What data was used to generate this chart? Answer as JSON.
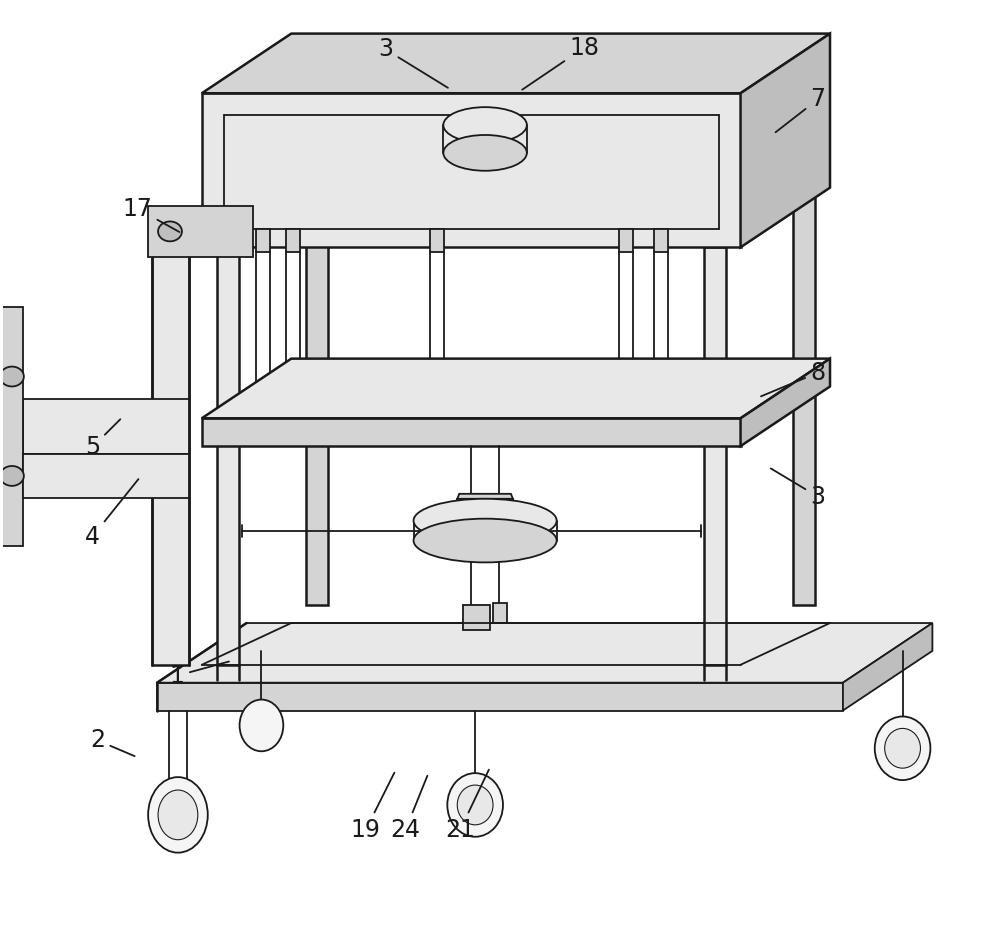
{
  "bg_color": "#ffffff",
  "line_color": "#1a1a1a",
  "lw": 1.3,
  "lw_heavy": 1.8,
  "fig_width": 10.0,
  "fig_height": 9.27,
  "label_fontsize": 17,
  "fills": {
    "light": "#e8e8e8",
    "mid": "#d4d4d4",
    "dark": "#bebebe",
    "xdark": "#a8a8a8",
    "white": "#f5f5f5"
  }
}
